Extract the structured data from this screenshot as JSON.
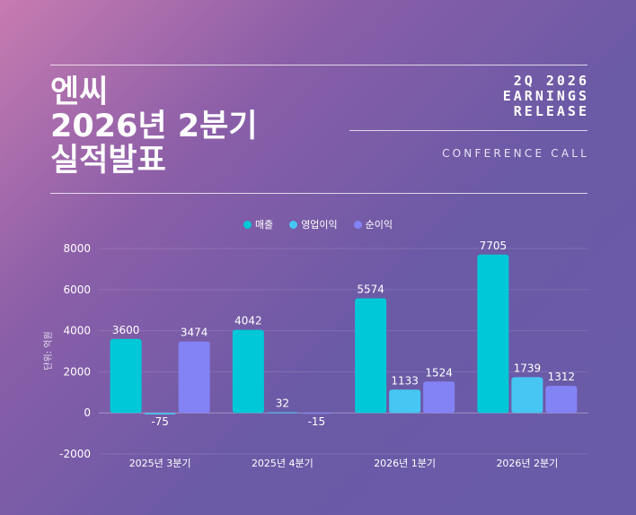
{
  "header": {
    "title_lines": [
      "엔씨",
      "2026년 2분기",
      "실적발표"
    ],
    "right_lines": [
      "2Q 2026",
      "EARNINGS",
      "RELEASE"
    ],
    "conference": "CONFERENCE CALL"
  },
  "colors": {
    "revenue": "#00c8d8",
    "operating": "#46c6f2",
    "net": "#8383f6"
  },
  "chart_data": {
    "type": "bar",
    "title": "",
    "xlabel": "",
    "ylabel": "단위: 억원",
    "categories": [
      "2025년 3분기",
      "2025년 4분기",
      "2026년 1분기",
      "2026년 2분기"
    ],
    "series": [
      {
        "name": "매출",
        "values": [
          3600,
          4042,
          5574,
          7705
        ]
      },
      {
        "name": "영업이익",
        "values": [
          -75,
          32,
          1133,
          1739
        ]
      },
      {
        "name": "순이익",
        "values": [
          3474,
          -15,
          1524,
          1312
        ]
      }
    ],
    "ylim": [
      -2000,
      8000
    ],
    "yticks": [
      -2000,
      0,
      2000,
      4000,
      6000,
      8000
    ],
    "legend_position": "top-center",
    "grid": true
  }
}
